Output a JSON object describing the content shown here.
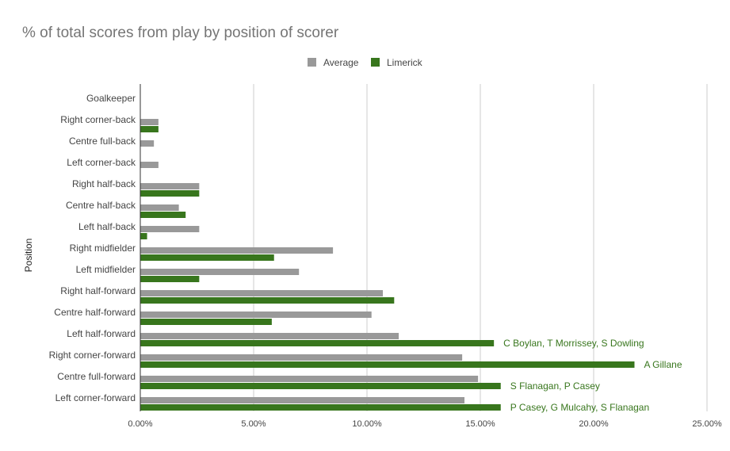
{
  "chart_data": {
    "type": "bar",
    "orientation": "horizontal",
    "title": "% of total scores from play by position of scorer",
    "ylabel": "Position",
    "xlabel": "",
    "xlim": [
      0,
      25
    ],
    "x_ticks": [
      "0.00%",
      "5.00%",
      "10.00%",
      "15.00%",
      "20.00%",
      "25.00%"
    ],
    "x_tick_values": [
      0,
      5,
      10,
      15,
      20,
      25
    ],
    "legend_position": "top",
    "grid": true,
    "categories": [
      "Goalkeeper",
      "Right corner-back",
      "Centre full-back",
      "Left corner-back",
      "Right half-back",
      "Centre half-back",
      "Left half-back",
      "Right midfielder",
      "Left midfielder",
      "Right half-forward",
      "Centre half-forward",
      "Left half-forward",
      "Right corner-forward",
      "Centre full-forward",
      "Left corner-forward"
    ],
    "series": [
      {
        "name": "Average",
        "color": "#999999",
        "values": [
          0,
          0.8,
          0.6,
          0.8,
          2.6,
          1.7,
          2.6,
          8.5,
          7.0,
          10.7,
          10.2,
          11.4,
          14.2,
          14.9,
          14.3
        ]
      },
      {
        "name": "Limerick",
        "color": "#38761d",
        "values": [
          0,
          0.8,
          0,
          0,
          2.6,
          2.0,
          0.3,
          5.9,
          2.6,
          11.2,
          5.8,
          15.6,
          21.8,
          15.9,
          15.9
        ]
      }
    ],
    "annotations": [
      {
        "category": "Left half-forward",
        "series": "Limerick",
        "text": "C Boylan, T Morrissey, S Dowling"
      },
      {
        "category": "Right corner-forward",
        "series": "Limerick",
        "text": "A Gillane"
      },
      {
        "category": "Centre full-forward",
        "series": "Limerick",
        "text": "S Flanagan, P Casey"
      },
      {
        "category": "Left corner-forward",
        "series": "Limerick",
        "text": "P Casey, G Mulcahy, S Flanagan"
      }
    ],
    "annotation_color": "#38761d"
  }
}
